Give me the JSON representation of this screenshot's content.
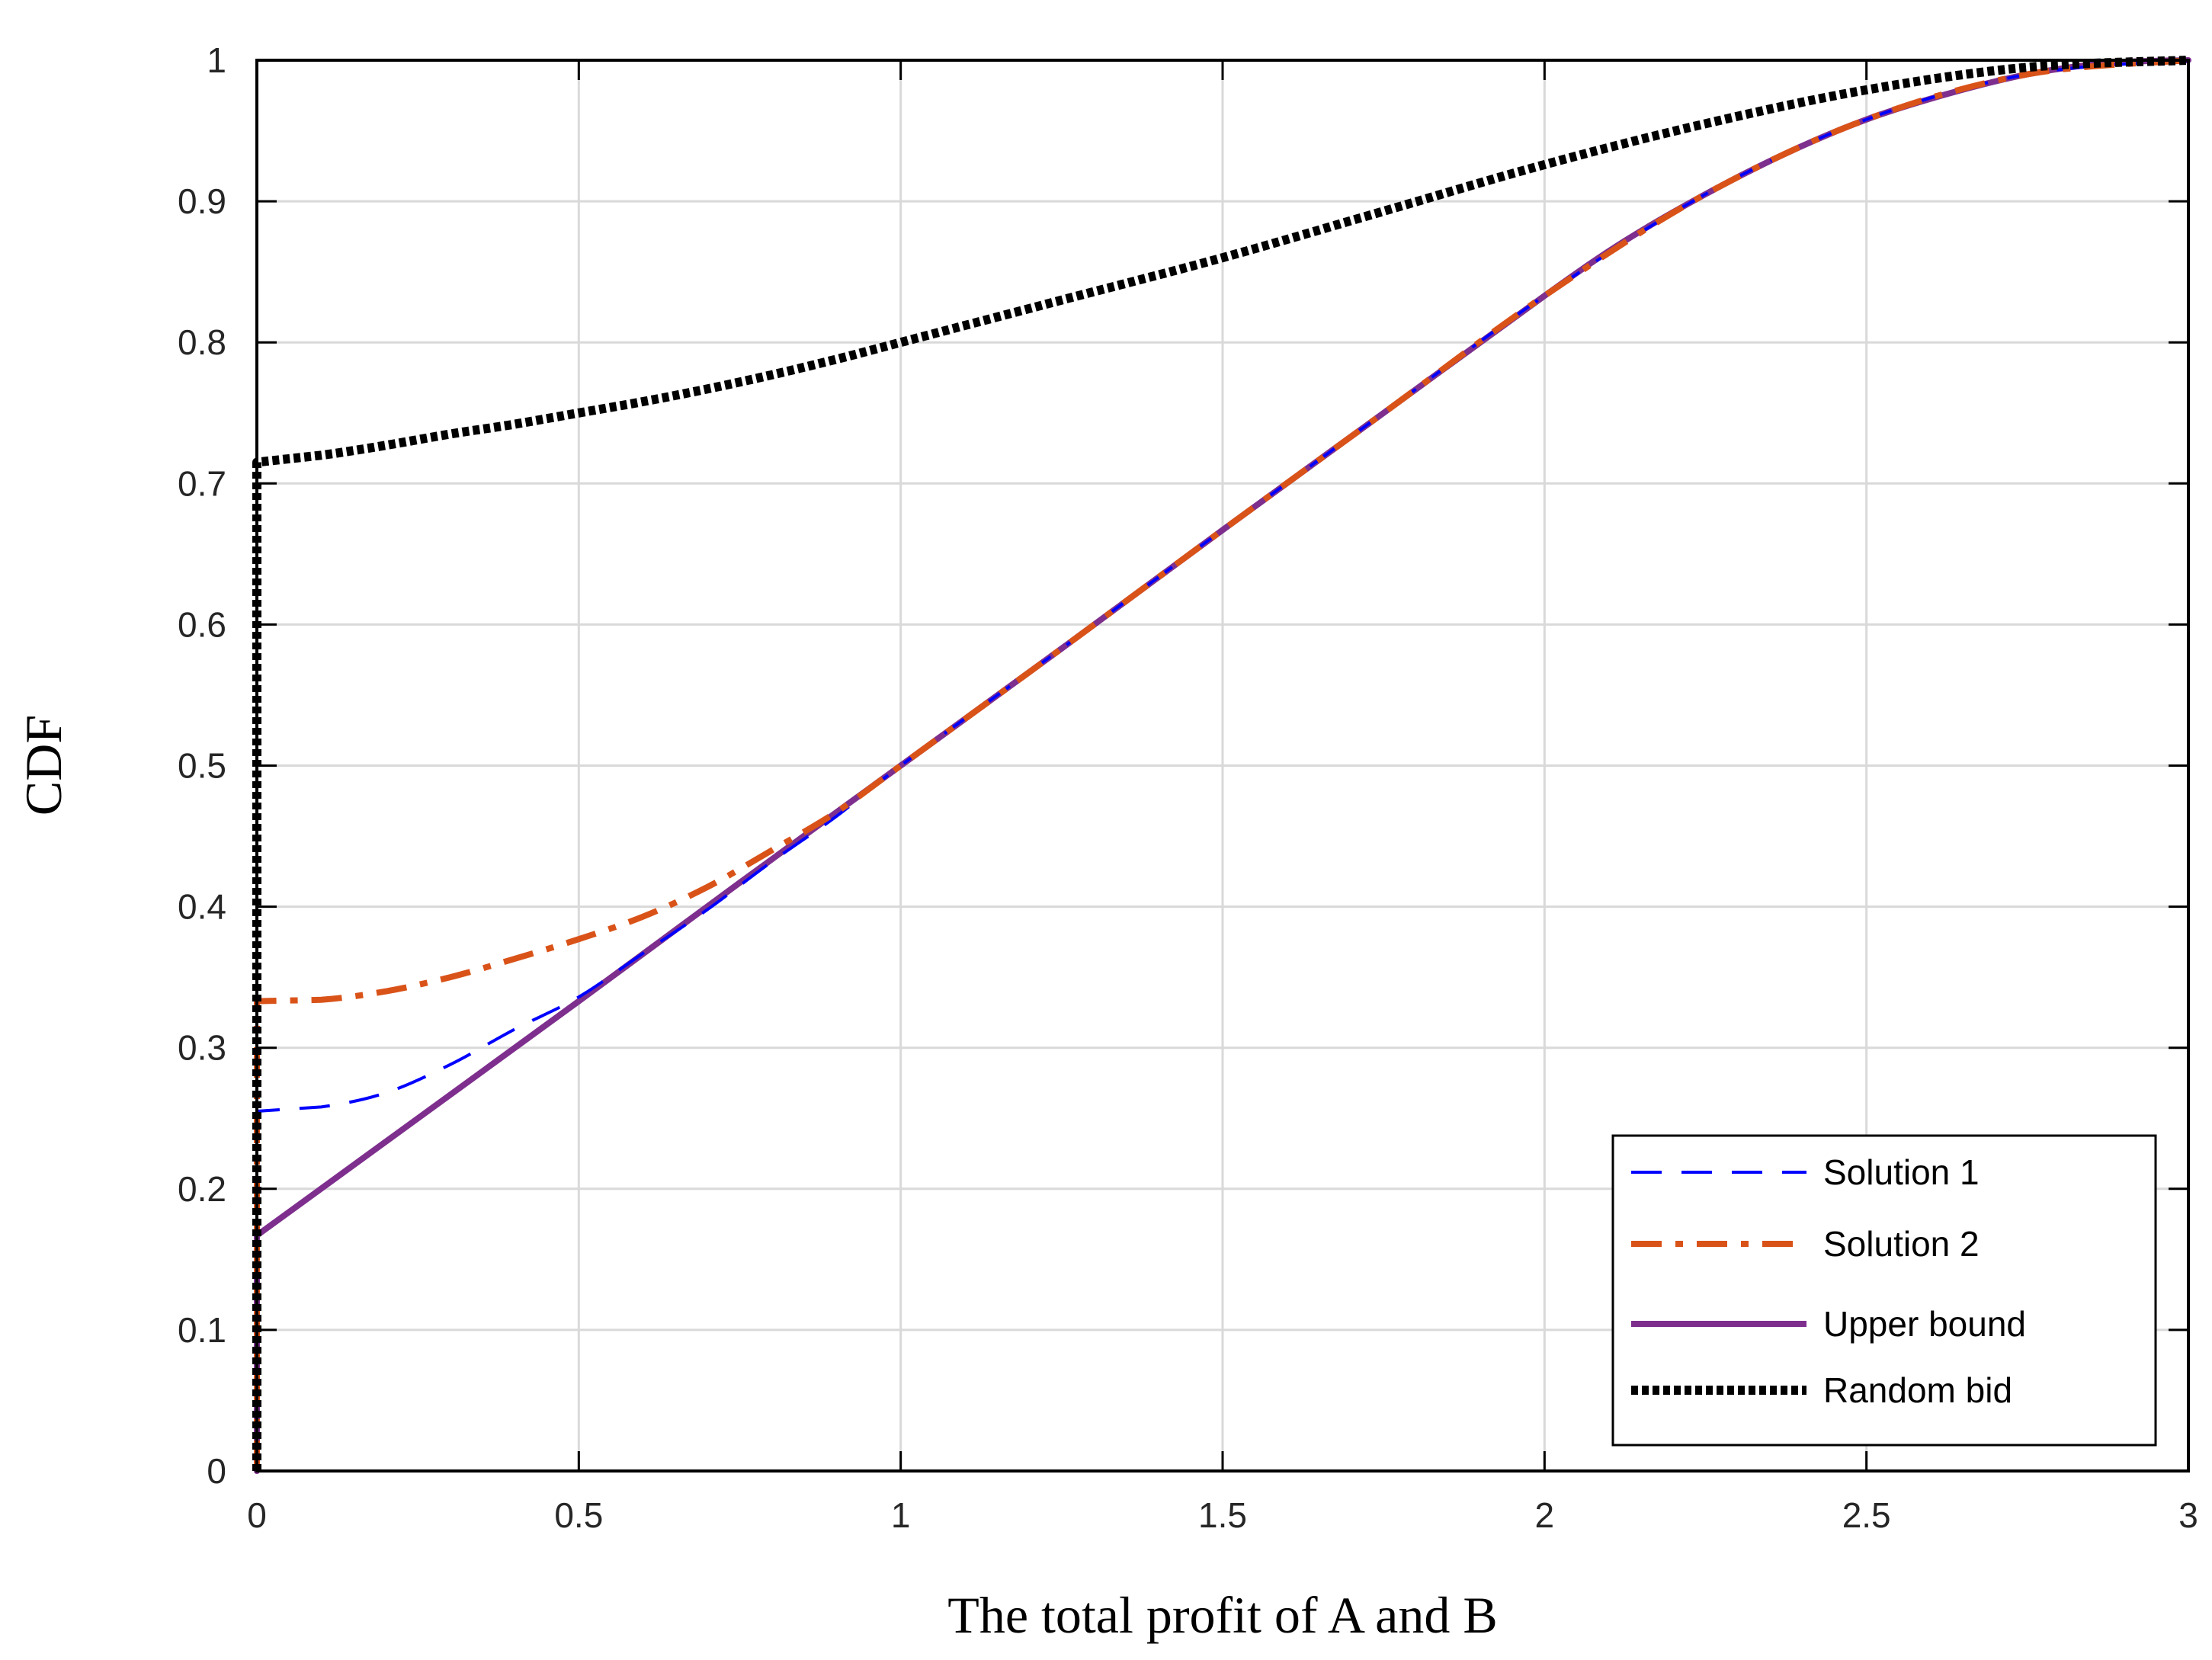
{
  "chart_data": {
    "type": "line",
    "title": "",
    "xlabel": "The total profit of A and B",
    "ylabel": "CDF",
    "xlim": [
      0,
      3
    ],
    "ylim": [
      0,
      1
    ],
    "xticks": [
      "0",
      "0.5",
      "1",
      "1.5",
      "2",
      "2.5",
      "3"
    ],
    "yticks": [
      "0",
      "0.1",
      "0.2",
      "0.3",
      "0.4",
      "0.5",
      "0.6",
      "0.7",
      "0.8",
      "0.9",
      "1"
    ],
    "grid": true,
    "legend_position": "bottom-right",
    "series": [
      {
        "name": "Solution 1",
        "color": "#0000ff",
        "style": "dashed",
        "points": [
          [
            0,
            0
          ],
          [
            0,
            0.255
          ],
          [
            0.1,
            0.258
          ],
          [
            0.2,
            0.268
          ],
          [
            0.3,
            0.288
          ],
          [
            0.4,
            0.313
          ],
          [
            0.5,
            0.336
          ],
          [
            0.6,
            0.367
          ],
          [
            0.7,
            0.398
          ],
          [
            0.8,
            0.432
          ],
          [
            0.9,
            0.464
          ],
          [
            1,
            0.5
          ],
          [
            1.25,
            0.583
          ],
          [
            1.5,
            0.667
          ],
          [
            1.75,
            0.75
          ],
          [
            2,
            0.833
          ],
          [
            2.25,
            0.905
          ],
          [
            2.5,
            0.958
          ],
          [
            2.75,
            0.99
          ],
          [
            3,
            1
          ]
        ]
      },
      {
        "name": "Solution 2",
        "color": "#d95319",
        "style": "dashdot",
        "points": [
          [
            0,
            0
          ],
          [
            0,
            0.333
          ],
          [
            0.1,
            0.334
          ],
          [
            0.2,
            0.34
          ],
          [
            0.3,
            0.35
          ],
          [
            0.4,
            0.363
          ],
          [
            0.5,
            0.377
          ],
          [
            0.6,
            0.393
          ],
          [
            0.7,
            0.414
          ],
          [
            0.8,
            0.44
          ],
          [
            0.9,
            0.467
          ],
          [
            1,
            0.5
          ],
          [
            1.25,
            0.583
          ],
          [
            1.5,
            0.667
          ],
          [
            1.75,
            0.75
          ],
          [
            2,
            0.833
          ],
          [
            2.25,
            0.905
          ],
          [
            2.5,
            0.958
          ],
          [
            2.75,
            0.99
          ],
          [
            3,
            1
          ]
        ]
      },
      {
        "name": "Upper bound",
        "color": "#7e2f8e",
        "style": "solid",
        "points": [
          [
            0,
            0
          ],
          [
            0,
            0.167
          ],
          [
            0.25,
            0.25
          ],
          [
            0.5,
            0.333
          ],
          [
            0.75,
            0.417
          ],
          [
            1,
            0.5
          ],
          [
            1.25,
            0.583
          ],
          [
            1.5,
            0.667
          ],
          [
            1.75,
            0.75
          ],
          [
            2,
            0.833
          ],
          [
            2.125,
            0.872
          ],
          [
            2.25,
            0.905
          ],
          [
            2.375,
            0.934
          ],
          [
            2.5,
            0.958
          ],
          [
            2.625,
            0.976
          ],
          [
            2.75,
            0.99
          ],
          [
            2.875,
            0.998
          ],
          [
            3,
            1
          ]
        ]
      },
      {
        "name": "Random bid",
        "color": "#000000",
        "style": "dotted",
        "points": [
          [
            0,
            0
          ],
          [
            0,
            0.715
          ],
          [
            0.1,
            0.72
          ],
          [
            0.2,
            0.727
          ],
          [
            0.3,
            0.735
          ],
          [
            0.4,
            0.742
          ],
          [
            0.5,
            0.75
          ],
          [
            0.6,
            0.758
          ],
          [
            0.7,
            0.767
          ],
          [
            0.8,
            0.777
          ],
          [
            0.9,
            0.788
          ],
          [
            1,
            0.8
          ],
          [
            1.25,
            0.83
          ],
          [
            1.5,
            0.86
          ],
          [
            1.75,
            0.893
          ],
          [
            2,
            0.926
          ],
          [
            2.25,
            0.955
          ],
          [
            2.5,
            0.979
          ],
          [
            2.75,
            0.995
          ],
          [
            3,
            1
          ]
        ]
      }
    ]
  }
}
